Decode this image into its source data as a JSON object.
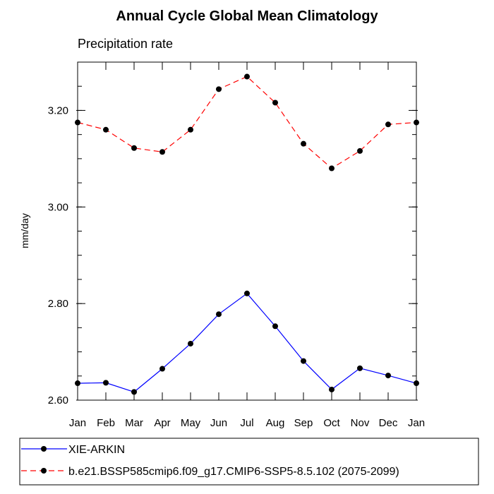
{
  "chart_data": {
    "type": "line",
    "title": "Annual Cycle Global Mean Climatology",
    "subtitle": "Precipitation rate",
    "ylabel": "mm/day",
    "xlabel": "",
    "categories": [
      "Jan",
      "Feb",
      "Mar",
      "Apr",
      "May",
      "Jun",
      "Jul",
      "Aug",
      "Sep",
      "Oct",
      "Nov",
      "Dec",
      "Jan"
    ],
    "ylim": [
      2.6,
      3.3
    ],
    "yticks": [
      2.6,
      2.8,
      3.0,
      3.2
    ],
    "ytick_labels": [
      "2.60",
      "2.80",
      "3.00",
      "3.20"
    ],
    "grid": false,
    "legend_position": "bottom",
    "series": [
      {
        "name": "XIE-ARKIN",
        "color": "#0000ff",
        "dash": "solid",
        "values": [
          2.635,
          2.636,
          2.617,
          2.665,
          2.717,
          2.778,
          2.821,
          2.753,
          2.681,
          2.622,
          2.666,
          2.651,
          2.635
        ]
      },
      {
        "name": "b.e21.BSSP585cmip6.f09_g17.CMIP6-SSP5-8.5.102 (2075-2099)",
        "color": "#ff0000",
        "dash": "dashed",
        "values": [
          3.175,
          3.16,
          3.122,
          3.114,
          3.16,
          3.244,
          3.27,
          3.216,
          3.131,
          3.08,
          3.116,
          3.171,
          3.175
        ]
      }
    ]
  }
}
